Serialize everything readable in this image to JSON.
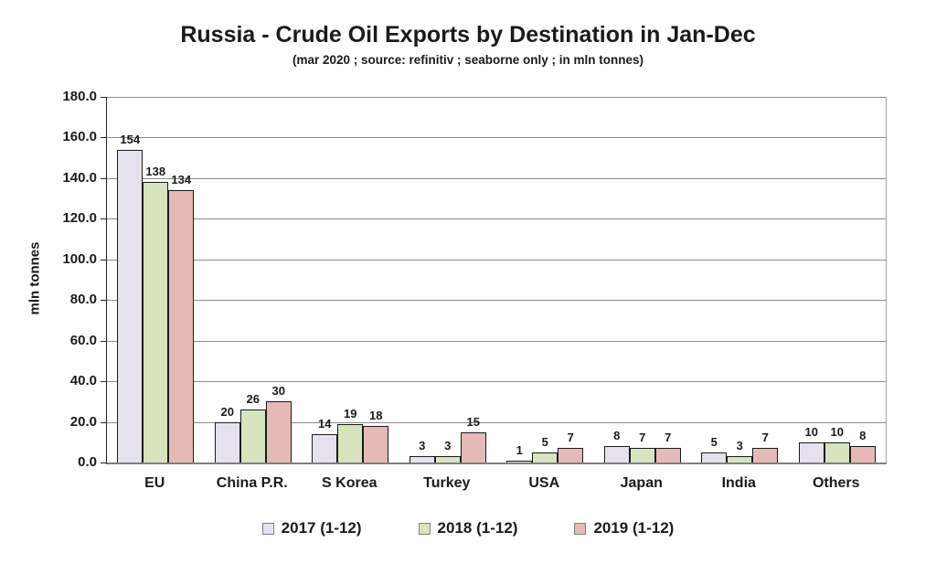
{
  "title": "Russia - Crude Oil Exports by Destination in Jan-Dec",
  "subtitle": "(mar 2020 ; source: refinitiv ; seaborne only ; in mln tonnes)",
  "chart_data": {
    "type": "bar",
    "title": "Russia - Crude Oil Exports by Destination in Jan-Dec",
    "subtitle": "(mar 2020 ; source: refinitiv ; seaborne only ; in mln tonnes)",
    "categories": [
      "EU",
      "China P.R.",
      "S Korea",
      "Turkey",
      "USA",
      "Japan",
      "India",
      "Others"
    ],
    "series": [
      {
        "name": "2017 (1-12)",
        "color": "#e6e1ef",
        "values": [
          154,
          20,
          14,
          3,
          1,
          8,
          5,
          10
        ]
      },
      {
        "name": "2018 (1-12)",
        "color": "#d7e4bd",
        "values": [
          138,
          26,
          19,
          3,
          5,
          7,
          3,
          10
        ]
      },
      {
        "name": "2019 (1-12)",
        "color": "#e6b9b8",
        "values": [
          134,
          30,
          18,
          15,
          7,
          7,
          7,
          8
        ]
      }
    ],
    "xlabel": "",
    "ylabel": "mln tonnes",
    "ylim": [
      0,
      180
    ],
    "ytick_step": 20,
    "yticks": [
      "180.0",
      "160.0",
      "140.0",
      "120.0",
      "100.0",
      "80.0",
      "60.0",
      "40.0",
      "20.0",
      "0.0"
    ],
    "grid": true,
    "gridline_color": "#8c8c8c",
    "bar_border_color": "#1a1a1a",
    "legend_position": "bottom"
  }
}
